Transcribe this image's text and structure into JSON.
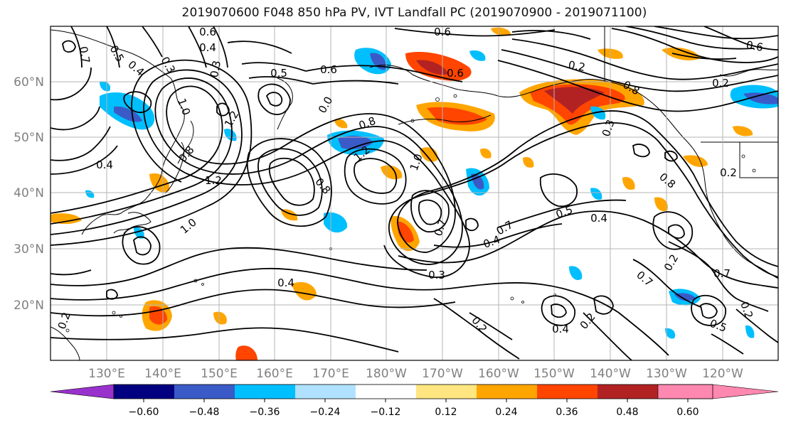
{
  "title": "2019070600 F048 850 hPa PV, IVT Landfall PC (2019070900 - 2019071100)",
  "axes": {
    "lat_labels": [
      "60°N",
      "50°N",
      "40°N",
      "30°N",
      "20°N"
    ],
    "lon_labels": [
      "130°E",
      "140°E",
      "150°E",
      "160°E",
      "170°E",
      "180°W",
      "170°W",
      "160°W",
      "150°W",
      "140°W",
      "130°W",
      "120°W"
    ]
  },
  "contour_labels": [
    "0.6",
    "0.6",
    "0.4",
    "0.7",
    "0.5",
    "0.4",
    "0.3",
    "0.3",
    "0.5",
    "0.6",
    "0.0",
    "0.8",
    "0.6",
    "0.2",
    "0.8",
    "0.6",
    "1.0",
    "1.2",
    "0.8",
    "1.2",
    "1.2",
    "0.4",
    "1.0",
    "0.8",
    "1.0",
    "0.2",
    "0.8",
    "0.5",
    "0.4",
    "0.7",
    "0.4",
    "0.7",
    "0.3",
    "0.4",
    "0.2",
    "0.4",
    "0.2",
    "0.7",
    "0.2",
    "0.7",
    "0.5",
    "0.2",
    "0.3",
    "0.2",
    "0.2"
  ],
  "colorbar": {
    "colors": [
      "#9932cc",
      "#000080",
      "#3a5bc7",
      "#00bfff",
      "#b0e2ff",
      "#ffffff",
      "#ffe680",
      "#ffa500",
      "#ff4500",
      "#b22222",
      "#ff88b0"
    ],
    "ticks": [
      "−0.60",
      "−0.48",
      "−0.36",
      "−0.24",
      "−0.12",
      "0.12",
      "0.24",
      "0.36",
      "0.48",
      "0.60"
    ]
  }
}
